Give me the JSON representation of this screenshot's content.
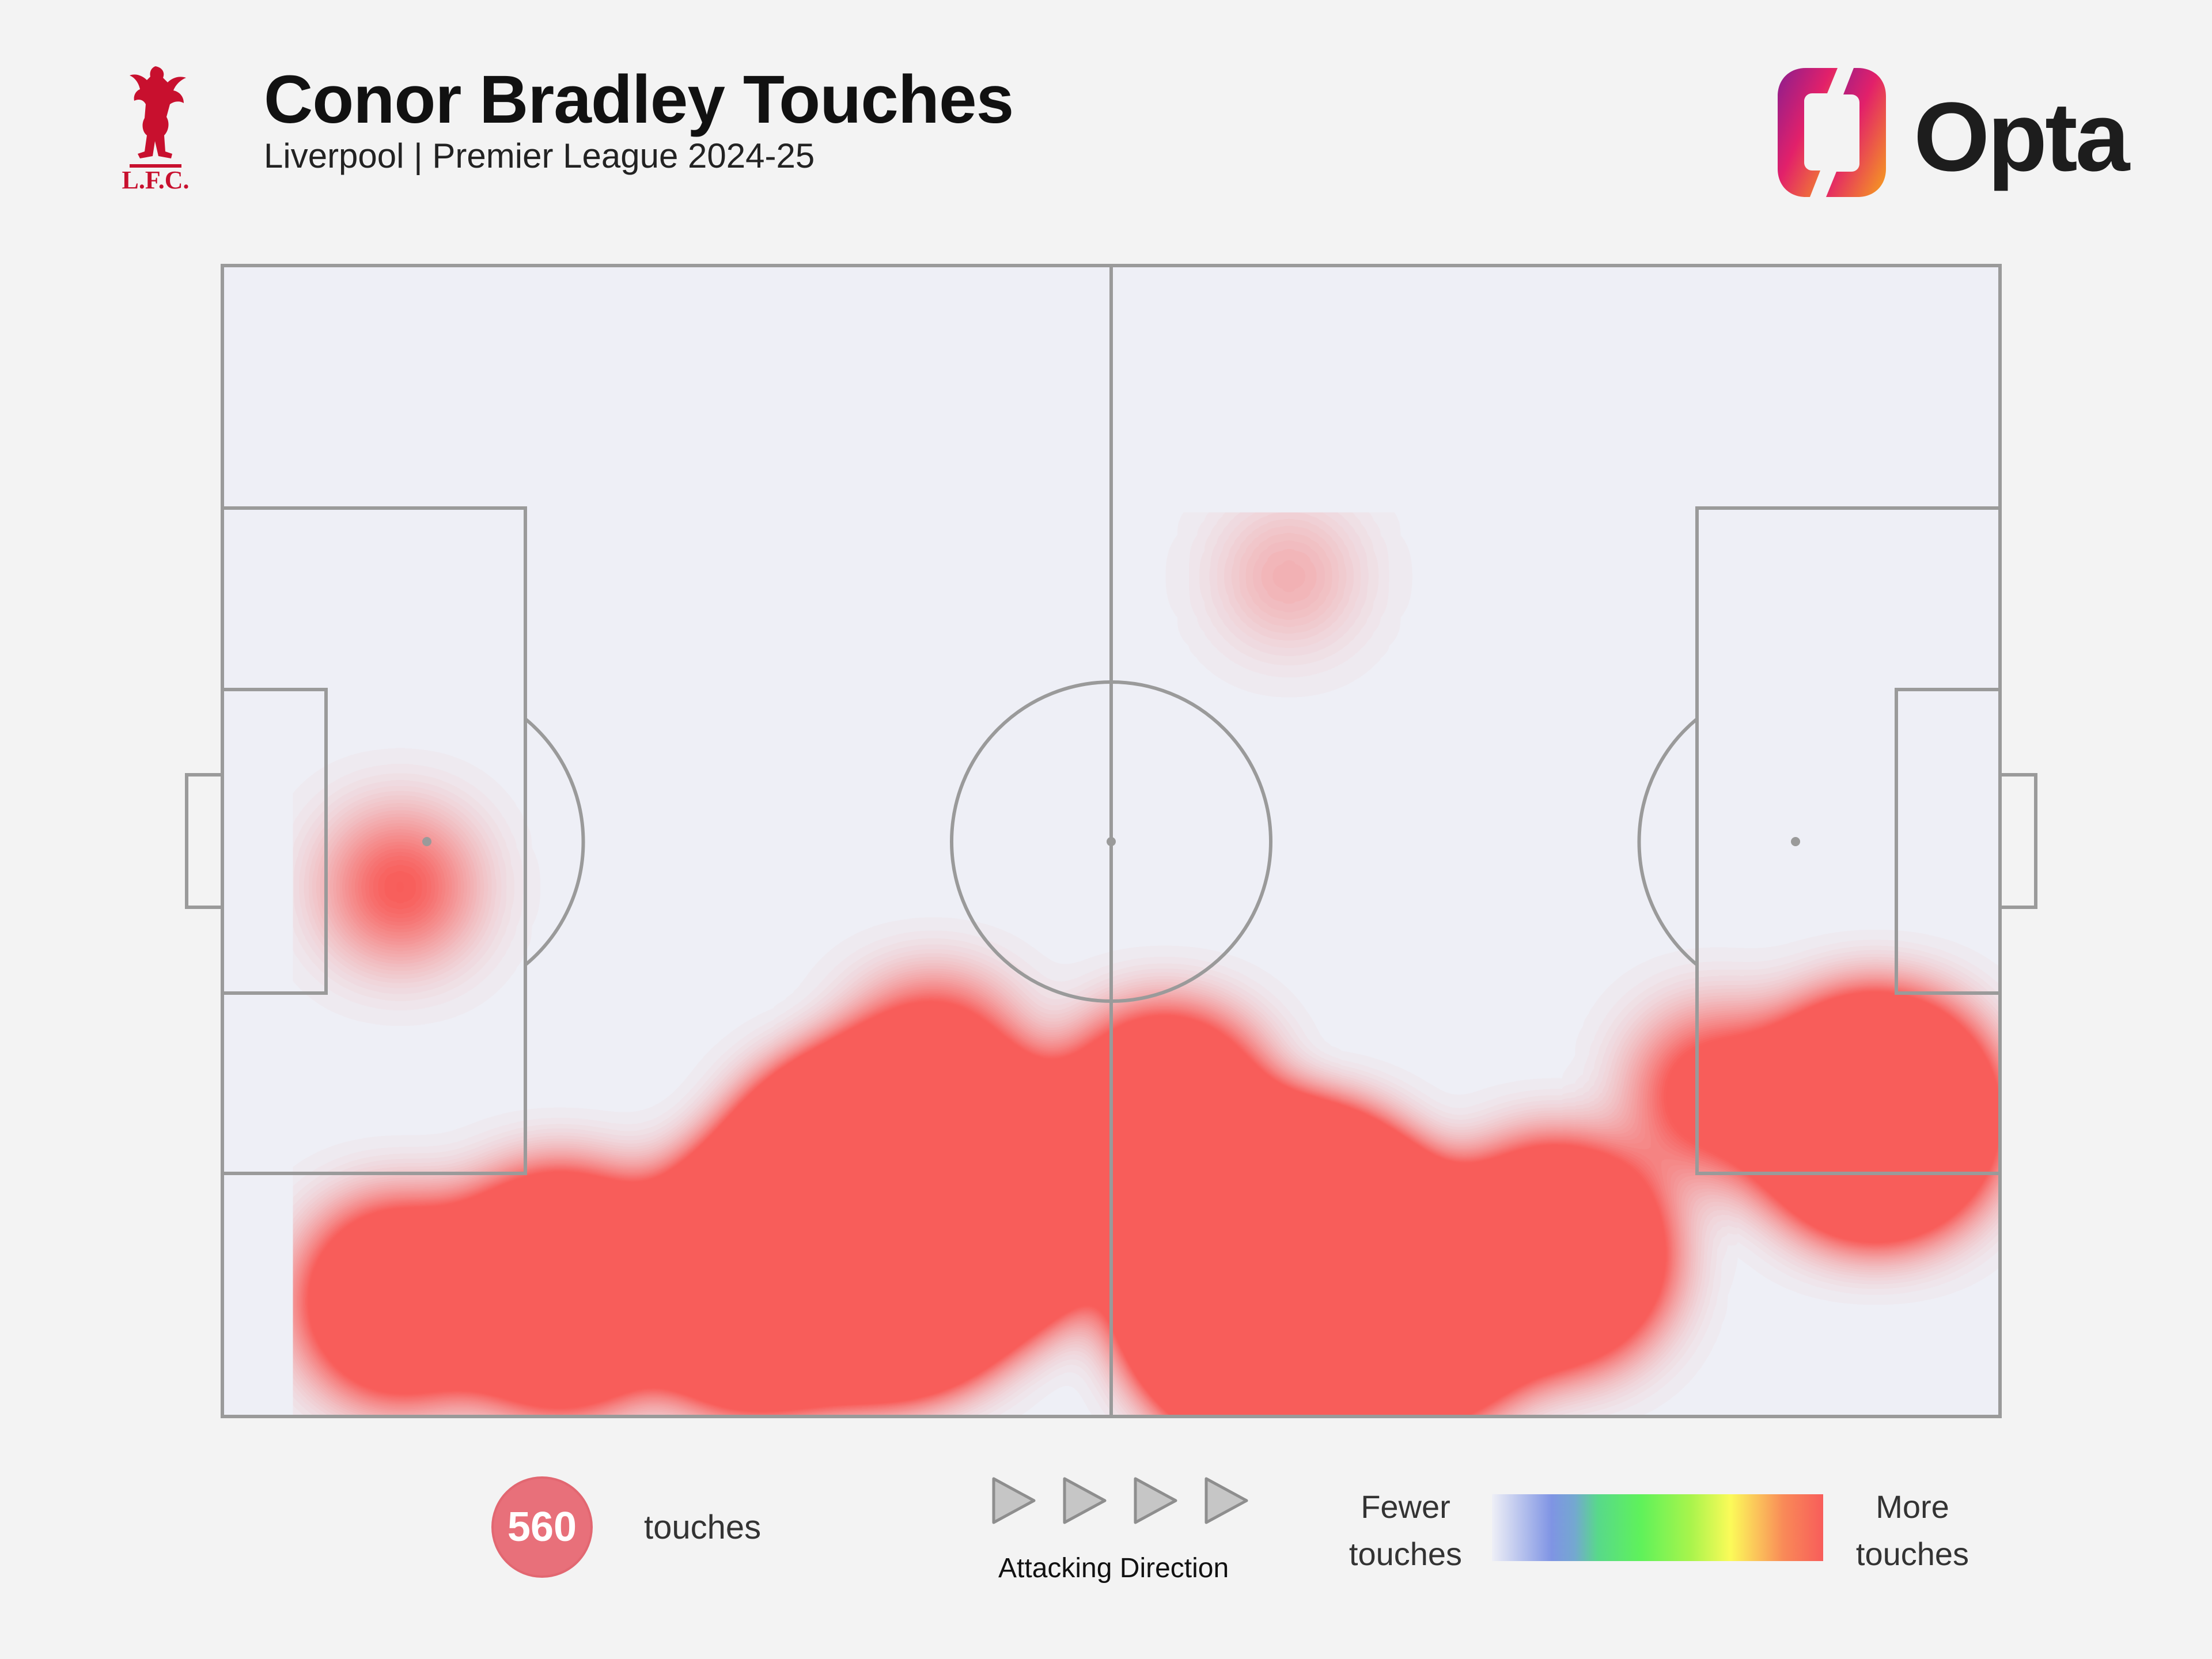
{
  "header": {
    "title": "Conor Bradley Touches",
    "subtitle": "Liverpool | Premier League 2024-25",
    "club_crest_text": "L.F.C.",
    "brand": "Opta"
  },
  "footer": {
    "touch_count": "560",
    "touch_label": "touches",
    "attacking_direction_label": "Attacking Direction",
    "legend_low": "Fewer touches",
    "legend_high": "More touches"
  },
  "colors": {
    "background": "#f3f3f3",
    "pitch_lines": "#9a9a9a",
    "badge": "#e8707a",
    "crest_red": "#c8102e",
    "heat_low": "#7f94e4",
    "heat_mid": "#5ff25a",
    "heat_high": "#f85d5a"
  },
  "chart_data": {
    "type": "heatmap",
    "x_range": [
      0,
      100
    ],
    "y_range": [
      0,
      100
    ],
    "attacking_direction": "left-to-right",
    "legend_placement": "bottom-right",
    "hotspots": [
      {
        "x": 37,
        "y": 17,
        "intensity": 1.0
      },
      {
        "x": 60,
        "y": 12,
        "intensity": 1.0
      },
      {
        "x": 44,
        "y": 19,
        "intensity": 0.55
      },
      {
        "x": 67,
        "y": 10,
        "intensity": 0.55
      },
      {
        "x": 30,
        "y": 12,
        "intensity": 0.6
      },
      {
        "x": 19,
        "y": 11,
        "intensity": 0.5
      },
      {
        "x": 10,
        "y": 10,
        "intensity": 0.35
      },
      {
        "x": 75,
        "y": 14,
        "intensity": 0.45
      },
      {
        "x": 93,
        "y": 26,
        "intensity": 0.55
      },
      {
        "x": 53,
        "y": 26,
        "intensity": 0.4
      },
      {
        "x": 40,
        "y": 30,
        "intensity": 0.25
      },
      {
        "x": 84,
        "y": 28,
        "intensity": 0.2
      },
      {
        "x": 10,
        "y": 46,
        "intensity": 0.15
      },
      {
        "x": 60,
        "y": 73,
        "intensity": 0.07
      }
    ]
  }
}
